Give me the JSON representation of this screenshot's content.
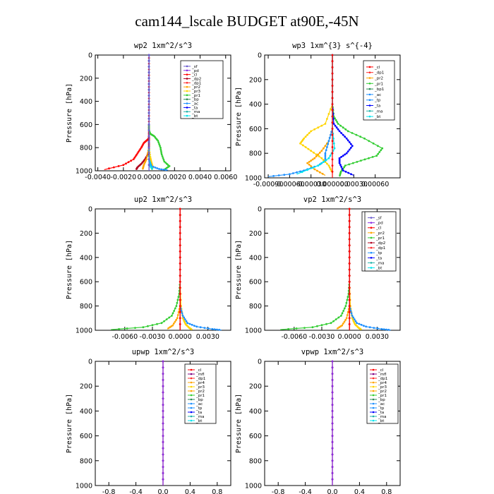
{
  "figure": {
    "title": "cam144_lscale  BUDGET at90E,-45N"
  },
  "chart_data": [
    {
      "type": "line",
      "title": "wp2   1xm^2/s^3",
      "xlabel": "",
      "ylabel": "Pressure  [hPa]",
      "xlim": [
        -0.0042,
        0.0064
      ],
      "ylim": [
        1000,
        0
      ],
      "x_ticks": [
        -0.004,
        -0.002,
        0.0,
        0.002,
        0.004,
        0.006
      ],
      "x_tick_labels": [
        "-0.0040",
        "-0.0020",
        "0.0000",
        "0.0020",
        "0.0040",
        "0.0060"
      ],
      "y_ticks": [
        0,
        200,
        400,
        600,
        800,
        1000
      ],
      "y_tick_labels": [
        "0",
        "200",
        "400",
        "600",
        "800",
        "1000"
      ],
      "legend_position": "top-right",
      "legend": [
        "_sf",
        "_pd",
        "_cl",
        "_dp2",
        "_dp1",
        "_pr2",
        "_pr3",
        "_pr1",
        "_bp",
        "_ac",
        "_ta",
        "_ma",
        "_bt"
      ],
      "series": [
        {
          "name": "_dp1",
          "color": "#ff0000",
          "x": [
            0,
            0,
            0,
            0,
            0,
            0,
            0,
            0,
            0,
            0,
            -0.0002,
            -0.0004,
            -0.0006,
            -0.0009,
            -0.0012,
            -0.002,
            -0.0035
          ],
          "y": [
            0,
            100,
            200,
            300,
            400,
            500,
            600,
            650,
            700,
            720,
            740,
            760,
            800,
            850,
            900,
            950,
            990
          ]
        },
        {
          "name": "_dp2",
          "color": "#b0001e",
          "x": [
            0,
            0,
            0,
            0,
            0,
            0,
            0,
            0,
            -0.0001,
            -0.0003,
            -0.0006,
            -0.0009,
            -0.001
          ],
          "y": [
            0,
            200,
            400,
            600,
            700,
            740,
            780,
            820,
            860,
            900,
            940,
            970,
            990
          ]
        },
        {
          "name": "_pr1",
          "color": "#32cd32",
          "x": [
            0,
            0,
            0,
            0,
            0,
            0.0001,
            0.0004,
            0.0007,
            0.0009,
            0.001,
            0.0012,
            0.0016,
            0.0012
          ],
          "y": [
            0,
            200,
            400,
            600,
            650,
            680,
            700,
            740,
            800,
            860,
            920,
            960,
            990
          ]
        },
        {
          "name": "_pr3",
          "color": "#ffd400",
          "x": [
            0,
            0,
            0,
            0,
            0,
            0.0001,
            0.0002,
            0.0003,
            0.0002
          ],
          "y": [
            0,
            200,
            400,
            600,
            800,
            880,
            930,
            970,
            990
          ]
        },
        {
          "name": "_pr2",
          "color": "#ffa500",
          "x": [
            0,
            0,
            0,
            0,
            0,
            -0.0002,
            -0.0004,
            -0.0005
          ],
          "y": [
            0,
            200,
            400,
            600,
            800,
            900,
            950,
            990
          ]
        },
        {
          "name": "_ac",
          "color": "#1e90ff",
          "x": [
            0,
            0,
            0,
            0,
            0,
            0,
            0.0002,
            0.0008,
            0.0015
          ],
          "y": [
            0,
            200,
            400,
            600,
            800,
            900,
            960,
            985,
            995
          ]
        },
        {
          "name": "_bt",
          "color": "#00e5ee",
          "x": [
            0,
            0,
            0,
            0,
            0,
            0,
            0.0001,
            0.0003
          ],
          "y": [
            0,
            200,
            400,
            600,
            800,
            900,
            960,
            990
          ]
        },
        {
          "name": "_pd",
          "color": "#8a2be2",
          "x": [
            0,
            0,
            0,
            0,
            0,
            0
          ],
          "y": [
            0,
            200,
            400,
            600,
            800,
            1000
          ]
        },
        {
          "name": "_sf",
          "color": "#6a5acd",
          "x": [
            0,
            0,
            0,
            0,
            0,
            0
          ],
          "y": [
            0,
            200,
            400,
            600,
            800,
            1000
          ]
        }
      ]
    },
    {
      "type": "line",
      "title": "wp3   1xm^{3} s^{-4}",
      "xlabel": "",
      "ylabel": "Pressure  [hPa]",
      "xlim": [
        -0.00095,
        0.00095
      ],
      "ylim": [
        1000,
        0
      ],
      "x_ticks": [
        -0.0009,
        -0.0006,
        -0.0003,
        0.0,
        0.0003,
        0.0006
      ],
      "x_tick_labels": [
        "-0.00090",
        "-0.00060",
        "-0.00030",
        "0.000000",
        "0.00030",
        "0.00060"
      ],
      "y_ticks": [
        0,
        200,
        400,
        600,
        800,
        1000
      ],
      "y_tick_labels": [
        "0",
        "200",
        "400",
        "600",
        "800",
        "1000"
      ],
      "legend_position": "top-right",
      "legend": [
        "_cl",
        "_dp1",
        "_pr2",
        "_pr1",
        "_bp1",
        "_ac",
        "_tp",
        "_ta",
        "_ma",
        "_bt"
      ],
      "series": [
        {
          "name": "_pr1",
          "color": "#32cd32",
          "x": [
            0,
            0,
            0,
            2e-05,
            8e-05,
            0.00022,
            0.00045,
            0.0007,
            0.00062,
            0.0004,
            0.00018,
            0.00012,
            0.0001
          ],
          "y": [
            0,
            200,
            400,
            500,
            560,
            620,
            680,
            760,
            820,
            860,
            900,
            950,
            990
          ]
        },
        {
          "name": "_pr2",
          "color": "#ffd400",
          "x": [
            0,
            0,
            0,
            -0.0001,
            -0.0003,
            -0.0004,
            -0.00045,
            -0.0003,
            -0.00015,
            -5e-05,
            0.0
          ],
          "y": [
            0,
            200,
            400,
            560,
            620,
            680,
            720,
            780,
            840,
            900,
            960
          ]
        },
        {
          "name": "_dp1",
          "color": "#ffa500",
          "x": [
            0,
            0,
            0,
            0,
            -5e-05,
            -0.00015,
            -0.00025,
            -0.00035,
            -0.00025,
            -0.0001
          ],
          "y": [
            0,
            200,
            400,
            600,
            700,
            780,
            840,
            880,
            930,
            980
          ]
        },
        {
          "name": "_tp",
          "color": "#0000ff",
          "x": [
            0,
            0,
            0,
            2e-05,
            0.0001,
            0.0002,
            0.00028,
            0.0002,
            0.0001,
            0.0001,
            0.00015,
            0.0003
          ],
          "y": [
            0,
            200,
            400,
            560,
            620,
            680,
            740,
            800,
            840,
            880,
            940,
            980
          ]
        },
        {
          "name": "_ac",
          "color": "#1e90ff",
          "x": [
            0,
            0,
            0,
            0,
            -5e-05,
            -0.0001,
            -0.0001,
            -0.0002,
            -0.0004,
            -0.0006,
            -0.0009
          ],
          "y": [
            0,
            200,
            400,
            600,
            700,
            800,
            860,
            900,
            940,
            970,
            990
          ]
        },
        {
          "name": "_bt",
          "color": "#00e5ee",
          "x": [
            0,
            0,
            0,
            0,
            3e-05,
            -5e-05,
            -0.0002,
            -0.0005
          ],
          "y": [
            0,
            200,
            400,
            600,
            760,
            840,
            900,
            970
          ]
        },
        {
          "name": "_cl",
          "color": "#ff0000",
          "x": [
            0,
            0,
            0,
            0,
            0,
            0
          ],
          "y": [
            0,
            200,
            400,
            600,
            800,
            1000
          ]
        }
      ]
    },
    {
      "type": "line",
      "title": "up2   1xm^2/s^3",
      "xlabel": "",
      "ylabel": "Pressure  [hPa]",
      "xlim": [
        -0.0092,
        0.0055
      ],
      "ylim": [
        1000,
        0
      ],
      "x_ticks": [
        -0.006,
        -0.003,
        0.0,
        0.003
      ],
      "x_tick_labels": [
        "-0.0060",
        "-0.0030",
        "0.0000",
        "0.0030"
      ],
      "y_ticks": [
        0,
        200,
        400,
        600,
        800,
        1000
      ],
      "y_tick_labels": [
        "0",
        "200",
        "400",
        "600",
        "800",
        "1000"
      ],
      "legend_position": "top-right",
      "legend": [
        "_sf",
        "_pd",
        "_cl",
        "_pr2",
        "_pr1",
        "_dp2",
        "_dp1",
        "_tp",
        "_ta",
        "_ma",
        "_bt"
      ],
      "series": [
        {
          "name": "_pr1",
          "color": "#32cd32",
          "x": [
            0,
            0,
            0,
            0,
            -0.0001,
            -0.0004,
            -0.0009,
            -0.002,
            -0.004,
            -0.0075
          ],
          "y": [
            0,
            200,
            400,
            600,
            700,
            800,
            880,
            940,
            975,
            995
          ]
        },
        {
          "name": "_pr2",
          "color": "#ffd400",
          "x": [
            0,
            0,
            0,
            0,
            0.0001,
            0.0003,
            0.0006,
            0.001,
            0.0013
          ],
          "y": [
            0,
            200,
            400,
            600,
            800,
            900,
            950,
            980,
            995
          ]
        },
        {
          "name": "_dp1",
          "color": "#ffa500",
          "x": [
            0,
            0,
            0,
            0,
            0,
            -0.0003,
            -0.0008,
            -0.0014
          ],
          "y": [
            0,
            200,
            400,
            600,
            800,
            900,
            960,
            990
          ]
        },
        {
          "name": "_tp",
          "color": "#1e90ff",
          "x": [
            0,
            0,
            0,
            0,
            0,
            0.0003,
            0.0008,
            0.0018,
            0.0035,
            0.0045
          ],
          "y": [
            0,
            200,
            400,
            600,
            800,
            880,
            940,
            970,
            990,
            998
          ]
        },
        {
          "name": "_dp2",
          "color": "#b0001e",
          "x": [
            0,
            0,
            0,
            0,
            0,
            0
          ],
          "y": [
            0,
            200,
            400,
            600,
            800,
            1000
          ]
        },
        {
          "name": "_cl",
          "color": "#ff0000",
          "x": [
            0,
            0,
            0,
            0,
            0,
            0
          ],
          "y": [
            0,
            200,
            400,
            600,
            800,
            1000
          ]
        }
      ]
    },
    {
      "type": "line",
      "title": "vp2   1xm^2/s^3",
      "xlabel": "",
      "ylabel": "Pressure  [hPa]",
      "xlim": [
        -0.0092,
        0.0055
      ],
      "ylim": [
        1000,
        0
      ],
      "x_ticks": [
        -0.006,
        -0.003,
        0.0,
        0.003
      ],
      "x_tick_labels": [
        "-0.0060",
        "-0.0030",
        "0.0000",
        "0.0030"
      ],
      "y_ticks": [
        0,
        200,
        400,
        600,
        800,
        1000
      ],
      "y_tick_labels": [
        "0",
        "200",
        "400",
        "600",
        "800",
        "1000"
      ],
      "legend_position": "top-right",
      "legend": [
        "_sf",
        "_pd",
        "_cl",
        "_pr2",
        "_pr1",
        "_dp2",
        "_dp1",
        "_tp",
        "_ta",
        "_ma",
        "_bt"
      ],
      "series": [
        {
          "name": "_pr1",
          "color": "#32cd32",
          "x": [
            0,
            0,
            0,
            0,
            -0.0001,
            -0.0004,
            -0.0009,
            -0.002,
            -0.004,
            -0.0075
          ],
          "y": [
            0,
            200,
            400,
            600,
            700,
            800,
            880,
            940,
            975,
            995
          ]
        },
        {
          "name": "_pr2",
          "color": "#ffd400",
          "x": [
            0,
            0,
            0,
            0,
            0.0001,
            0.0003,
            0.0006,
            0.001,
            0.0013
          ],
          "y": [
            0,
            200,
            400,
            600,
            800,
            900,
            950,
            980,
            995
          ]
        },
        {
          "name": "_dp1",
          "color": "#ffa500",
          "x": [
            0,
            0,
            0,
            0,
            0,
            -0.0003,
            -0.0008,
            -0.0014
          ],
          "y": [
            0,
            200,
            400,
            600,
            800,
            900,
            960,
            990
          ]
        },
        {
          "name": "_tp",
          "color": "#1e90ff",
          "x": [
            0,
            0,
            0,
            0,
            0,
            0.0003,
            0.0008,
            0.0018,
            0.0035,
            0.0045
          ],
          "y": [
            0,
            200,
            400,
            600,
            800,
            880,
            940,
            970,
            990,
            998
          ]
        },
        {
          "name": "_dp2",
          "color": "#b0001e",
          "x": [
            0,
            0,
            0,
            0,
            0,
            0
          ],
          "y": [
            0,
            200,
            400,
            600,
            800,
            1000
          ]
        },
        {
          "name": "_cl",
          "color": "#ff0000",
          "x": [
            0,
            0,
            0,
            0,
            0,
            0
          ],
          "y": [
            0,
            200,
            400,
            600,
            800,
            1000
          ]
        }
      ]
    },
    {
      "type": "line",
      "title": "upwp   1xm^2/s^3",
      "xlabel": "",
      "ylabel": "Pressure  [hPa]",
      "xlim": [
        -1.0,
        1.0
      ],
      "ylim": [
        1000,
        0
      ],
      "x_ticks": [
        -0.8,
        -0.4,
        0.0,
        0.4,
        0.8
      ],
      "x_tick_labels": [
        "-0.8",
        "-0.4",
        "0.0",
        "0.4",
        "0.8"
      ],
      "y_ticks": [
        0,
        200,
        400,
        600,
        800,
        1000
      ],
      "y_tick_labels": [
        "0",
        "200",
        "400",
        "600",
        "800",
        "1000"
      ],
      "legend_position": "top-right",
      "legend": [
        "_cl",
        "_mfl",
        "_dp1",
        "_pr4",
        "_pr3",
        "_pr2",
        "_pr1",
        "_bp",
        "_ac",
        "_tp",
        "_ta",
        "_ma",
        "_bt"
      ],
      "series": [
        {
          "name": "_dp1",
          "color": "#8b0000",
          "x": [
            0,
            0,
            0,
            0,
            0,
            0
          ],
          "y": [
            0,
            200,
            400,
            600,
            800,
            1000
          ]
        },
        {
          "name": "_cl",
          "color": "#8a2be2",
          "x": [
            0,
            0,
            0,
            0,
            0,
            0
          ],
          "y": [
            0,
            200,
            400,
            600,
            800,
            1000
          ]
        }
      ]
    },
    {
      "type": "line",
      "title": "vpwp   1xm^2/s^3",
      "xlabel": "",
      "ylabel": "Pressure  [hPa]",
      "xlim": [
        -1.0,
        1.0
      ],
      "ylim": [
        1000,
        0
      ],
      "x_ticks": [
        -0.8,
        -0.4,
        0.0,
        0.4,
        0.8
      ],
      "x_tick_labels": [
        "-0.8",
        "-0.4",
        "0.0",
        "0.4",
        "0.8"
      ],
      "y_ticks": [
        0,
        200,
        400,
        600,
        800,
        1000
      ],
      "y_tick_labels": [
        "0",
        "200",
        "400",
        "600",
        "800",
        "1000"
      ],
      "legend_position": "top-right",
      "legend": [
        "_cl",
        "_mfl",
        "_dp1",
        "_pr4",
        "_pr3",
        "_pr2",
        "_pr1",
        "_bp",
        "_ac",
        "_tp",
        "_ta",
        "_ma",
        "_bt"
      ],
      "series": [
        {
          "name": "_dp1",
          "color": "#8b0000",
          "x": [
            0,
            0,
            0,
            0,
            0,
            0
          ],
          "y": [
            0,
            200,
            400,
            600,
            800,
            1000
          ]
        },
        {
          "name": "_cl",
          "color": "#8a2be2",
          "x": [
            0,
            0,
            0,
            0,
            0,
            0
          ],
          "y": [
            0,
            200,
            400,
            600,
            800,
            1000
          ]
        }
      ]
    }
  ]
}
